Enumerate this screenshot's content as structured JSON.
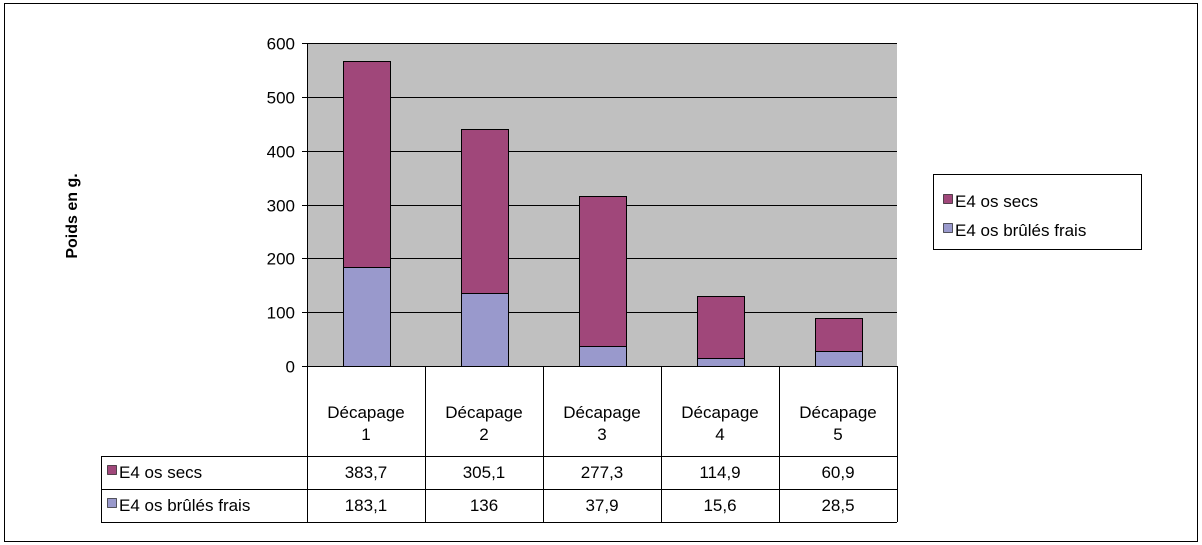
{
  "chart_data": {
    "type": "bar",
    "stacked": true,
    "ylabel": "Poids en g.",
    "xlabel": "",
    "ylim": [
      0,
      600
    ],
    "yticks": [
      "0",
      "100",
      "200",
      "300",
      "400",
      "500",
      "600"
    ],
    "grid": true,
    "legend_position": "right",
    "categories": [
      [
        "Décapage",
        "1"
      ],
      [
        "Décapage",
        "2"
      ],
      [
        "Décapage",
        "3"
      ],
      [
        "Décapage",
        "4"
      ],
      [
        "Décapage",
        "5"
      ]
    ],
    "series": [
      {
        "name": "E4 os brûlés frais",
        "color": "#9999cc",
        "values": [
          183.1,
          136,
          37.9,
          15.6,
          28.5
        ],
        "labels": [
          "183,1",
          "136",
          "37,9",
          "15,6",
          "28,5"
        ]
      },
      {
        "name": "E4 os secs",
        "color": "#a0477a",
        "values": [
          383.7,
          305.1,
          277.3,
          114.9,
          60.9
        ],
        "labels": [
          "383,7",
          "305,1",
          "277,3",
          "114,9",
          "60,9"
        ]
      }
    ],
    "legend_order": [
      1,
      0
    ],
    "table_order": [
      1,
      0
    ],
    "plot_background": "#c0c0c0"
  }
}
